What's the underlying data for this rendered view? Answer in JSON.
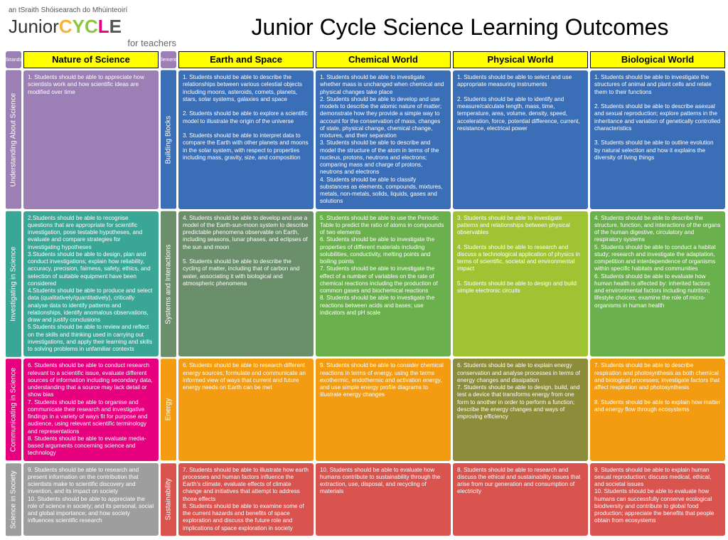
{
  "header": {
    "tagline": "an tSraith Shóisearach do Mhúinteoirí",
    "logo_junior": "Junior",
    "logo_cycle": "CYCLE",
    "logo_sub": "for teachers",
    "title": "Junior Cycle Science Learning Outcomes"
  },
  "arrows": {
    "strands": "Strands",
    "elements": "Elements"
  },
  "columns": [
    "Nature of Science",
    "Earth and Space",
    "Chemical World",
    "Physical World",
    "Biological World"
  ],
  "rowLabels": {
    "uas": "Understanding About Science",
    "iis": "Investigating in Science",
    "cis": "Communicating in Science",
    "sis": "Science in Society",
    "bb": "Building Blocks",
    "si": "Systems and Interactions",
    "en": "Energy",
    "su": "Sustainability"
  },
  "cells": {
    "nos_uas": "1. Students should be able to appreciate how scientists work and how scientific ideas are modified over time",
    "nos_iis": "2.Students should be able to recognise questions that are appropriate for scientific investigation, pose testable hypotheses, and evaluate and compare strategies for investigating hypotheses\n3.Students should be able to design, plan and conduct investigations; explain how reliability, accuracy, precision, fairness, safety, ethics, and selection of suitable equipment have been considered\n4.Students should be able to produce and select data (qualitatively/quantitatively), critically analyse data to identify patterns and relationships, identify anomalous observations, draw and justify conclusions\n5.Students should be able to review and reflect on the skills and thinking used in carrying out investigations, and apply their learning and skills to solving problems in unfamiliar contexts",
    "nos_cis": "6. Students should be able to conduct research relevant to a scientific issue, evaluate different sources of information including secondary data, understanding that a source may lack detail or show bias\n7. Students should be able to organise and communicate their research and investigative findings in a variety of ways fit for purpose and audience, using relevant scientific terminology and representations\n8. Students should be able to evaluate media-based arguments concerning science and technology",
    "nos_sis": "9. Students should be able to research and present information on the contribution that scientists make to scientific discovery and invention, and its impact on society\n10. Students should be able to appreciate the role of science in society; and its personal, social and global importance; and how society influences scientific research",
    "es_bb": "1. Students should be able to describe the relationships between various celestial objects including moons, asteroids, comets, planets, stars, solar systems, galaxies and space\n\n2. Students should be able to explore a scientific model to illustrate the origin of the universe\n\n3. Students should be able to interpret data to compare the Earth with other planets and moons in the solar system, with respect to properties including mass, gravity, size, and composition",
    "es_si": "4. Students should be able to develop and use a model of the Earth-sun-moon system to describe predictable phenomena observable on Earth, including seasons, lunar phases, and eclipses of the sun and moon\n\n5. Students should be able to describe the cycling of matter, including that of carbon and water, associating it with biological and atmospheric phenomena",
    "es_en": "6. Students should be able to research different energy sources; formulate and communicate an informed view of ways that current and future energy needs on Earth can be met",
    "es_su": "7. Students should be able to illustrate how earth processes and human factors influence the Earth's climate, evaluate effects of climate change and initiatives that attempt to address those effects\n8. Students should be able to examine some of the current hazards and benefits of space exploration and discuss the future role and implications of space exploration in society",
    "cw_bb": "1. Students should be able to investigate whether mass is unchanged when chemical and physical changes take place\n2. Students should be able to develop and use models to describe the atomic nature of matter; demonstrate how they provide a simple way to account for the conservation of mass, changes of state, physical change, chemical change, mixtures, and their separation\n3. Students should be able to describe and model the structure of the atom in terms of the nucleus, protons, neutrons and electrons; comparing mass and charge of protons, neutrons and electrons\n4. Students should be able to classify substances as elements, compounds, mixtures, metals, non-metals, solids, liquids, gases and solutions",
    "cw_si": "5. Students should be able to use the Periodic Table to predict the ratio of atoms in compounds of two elements\n6. Students should be able to investigate the properties of different materials including solubilities, conductivity, melting points and boiling points\n7. Students should be able to investigate the effect of a number of variables on the rate of chemical reactions including the production of common gases and biochemical reactions\n8. Students should be able to investigate the reactions between acids and bases; use indicators and pH scale",
    "cw_en": "9. Students should be able to consider chemical reactions in terms of energy, using the terms exothermic, endothermic and activation energy, and use simple energy profile diagrams to illustrate energy changes",
    "cw_su": "10. Students should be able to evaluate how humans contribute to sustainability through the extraction, use, disposal, and recycling of materials",
    "pw_bb": "1. Students should be able to select and use appropriate measuring instruments\n\n2. Students should be able to identify and measure/calculate length, mass, time, temperature, area, volume, density, speed, acceleration, force, potential difference, current, resistance, electrical power",
    "pw_si": "3. Students should be able to investigate patterns and relationships between physical observables\n\n4. Students should be able to research and discuss a technological application of physics in terms of scientific, societal and environmental impact\n\n5. Students should be able to design and build simple electronic circuits",
    "pw_en": "6. Students should be able to explain energy conservation and analyse processes in terms of energy changes and dissipation\n7. Students should be able to design, build, and test a device that transforms energy from one form to another in order to perform a function; describe the energy changes and ways of improving efficiency",
    "pw_su": "8. Students should be able to research and discuss the ethical and sustainability issues that arise from our generation and consumption of electricity",
    "bw_bb": "1. Students should be able to investigate the structures of animal and plant cells and relate them to their functions\n\n2. Students should be able to describe asexual and sexual reproduction; explore patterns in the inheritance and variation of genetically controlled characteristics\n\n3. Students should be able to outline evolution by natural selection and how it explains the diversity of living things",
    "bw_si": "4. Students should be able to describe the structure, function, and interactions of the organs of the human digestive, circulatory and respiratory systems\n5. Students should be able to conduct a habitat study; research and investigate the adaptation, competition and interdependence of organisms within specific habitats and communities\n6. Students should be able to evaluate how human health is affected by: inherited factors and environmental factors including nutrition; lifestyle choices; examine the role of micro-organisms in human health",
    "bw_en": "7. Students should be able to describe respiration and photosynthesis as both chemical and biological processes; investigate factors that affect respiration and photosynthesis\n\n8. Students should be able to explain how matter and energy flow through ecosystems",
    "bw_su": "9. Students should be able to explain human sexual reproduction; discuss medical, ethical, and societal issues\n10. Students should be able to evaluate how humans can successfully conserve ecological biodiversity and contribute to global food production; appreciate the benefits that people obtain from ecosystems"
  }
}
